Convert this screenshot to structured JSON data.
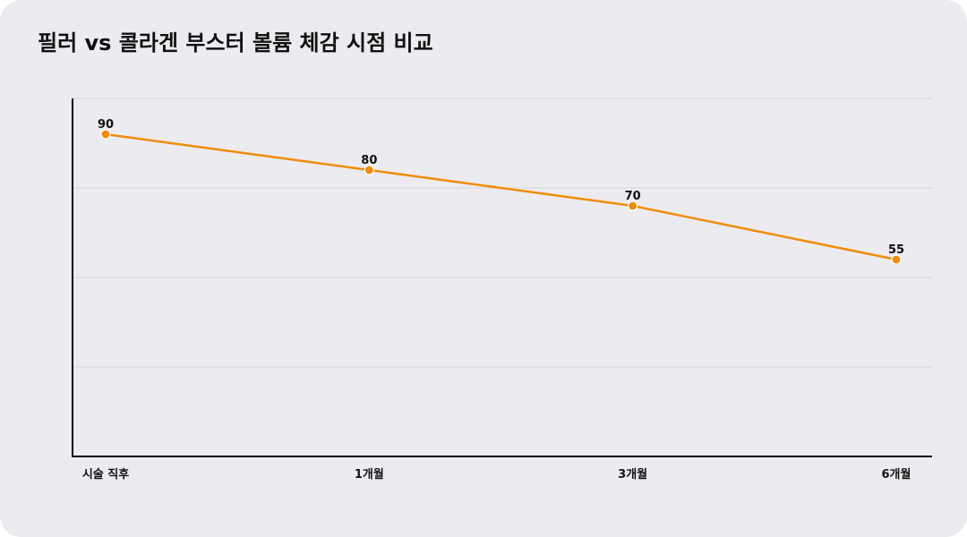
{
  "chart_data": {
    "type": "line",
    "title": "필러 vs 콜라겐 부스터 볼륨 체감 시점 비교",
    "categories": [
      "시술 직후",
      "1개월",
      "3개월",
      "6개월"
    ],
    "series": [
      {
        "values": [
          90,
          80,
          70,
          55
        ],
        "color": "#f08c0a"
      }
    ],
    "ylim": [
      0,
      100
    ],
    "grid": true,
    "legend": "none",
    "data_labels": true
  }
}
